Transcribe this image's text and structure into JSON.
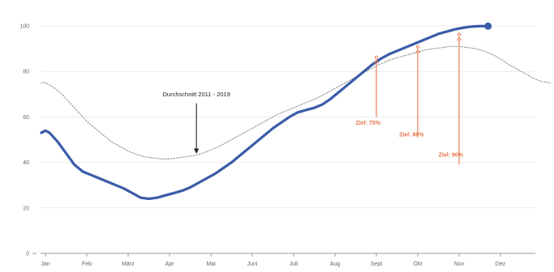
{
  "chart_data": {
    "type": "line",
    "title": "",
    "xlabel": "",
    "ylabel": "",
    "ylim": [
      0,
      100
    ],
    "yticks": [
      0,
      20,
      40,
      60,
      80,
      100
    ],
    "xlim": [
      0,
      12
    ],
    "xticks": [
      {
        "label": "Jan",
        "x": 0
      },
      {
        "label": "Feb",
        "x": 1
      },
      {
        "label": "März",
        "x": 2
      },
      {
        "label": "Apr",
        "x": 3
      },
      {
        "label": "Mai",
        "x": 4
      },
      {
        "label": "Juni",
        "x": 5
      },
      {
        "label": "Juli",
        "x": 6
      },
      {
        "label": "Aug",
        "x": 7
      },
      {
        "label": "Sept",
        "x": 8
      },
      {
        "label": "Okt",
        "x": 9
      },
      {
        "label": "Nov",
        "x": 10
      },
      {
        "label": "Dez",
        "x": 11
      }
    ],
    "grid": true,
    "series": [
      {
        "key": "current",
        "color": "#3a5ca8",
        "style": "solid",
        "end_marker": true,
        "points": [
          [
            -0.1,
            53
          ],
          [
            0.0,
            54
          ],
          [
            0.1,
            53
          ],
          [
            0.3,
            49
          ],
          [
            0.5,
            44
          ],
          [
            0.7,
            39
          ],
          [
            0.9,
            36
          ],
          [
            1.1,
            34.5
          ],
          [
            1.3,
            33
          ],
          [
            1.5,
            31.5
          ],
          [
            1.7,
            30
          ],
          [
            1.9,
            28.5
          ],
          [
            2.1,
            26.5
          ],
          [
            2.3,
            24.5
          ],
          [
            2.5,
            24
          ],
          [
            2.7,
            24.5
          ],
          [
            2.9,
            25.5
          ],
          [
            3.1,
            26.5
          ],
          [
            3.3,
            27.5
          ],
          [
            3.5,
            29
          ],
          [
            3.7,
            31
          ],
          [
            3.9,
            33
          ],
          [
            4.1,
            35
          ],
          [
            4.3,
            37.5
          ],
          [
            4.5,
            40
          ],
          [
            4.7,
            43
          ],
          [
            4.9,
            46
          ],
          [
            5.1,
            49
          ],
          [
            5.3,
            52
          ],
          [
            5.5,
            55
          ],
          [
            5.7,
            57.5
          ],
          [
            5.9,
            60
          ],
          [
            6.1,
            62
          ],
          [
            6.3,
            63
          ],
          [
            6.5,
            64
          ],
          [
            6.7,
            65.5
          ],
          [
            6.9,
            68
          ],
          [
            7.1,
            71
          ],
          [
            7.3,
            74
          ],
          [
            7.5,
            77
          ],
          [
            7.7,
            80
          ],
          [
            7.9,
            83
          ],
          [
            8.1,
            85.5
          ],
          [
            8.3,
            87.5
          ],
          [
            8.5,
            89
          ],
          [
            8.7,
            90.5
          ],
          [
            8.9,
            92
          ],
          [
            9.1,
            93.5
          ],
          [
            9.3,
            95
          ],
          [
            9.5,
            96.5
          ],
          [
            9.7,
            97.5
          ],
          [
            9.9,
            98.5
          ],
          [
            10.1,
            99.2
          ],
          [
            10.3,
            99.7
          ],
          [
            10.5,
            99.9
          ],
          [
            10.7,
            99.9
          ]
        ]
      },
      {
        "key": "average",
        "color": "#9a9a9a",
        "style": "dotted",
        "points": [
          [
            -0.1,
            75
          ],
          [
            0.0,
            75
          ],
          [
            0.2,
            73
          ],
          [
            0.4,
            70
          ],
          [
            0.6,
            66
          ],
          [
            0.8,
            62
          ],
          [
            1.0,
            58
          ],
          [
            1.2,
            55
          ],
          [
            1.4,
            52
          ],
          [
            1.6,
            49
          ],
          [
            1.8,
            47
          ],
          [
            2.0,
            45
          ],
          [
            2.2,
            43.5
          ],
          [
            2.4,
            42.5
          ],
          [
            2.6,
            42
          ],
          [
            2.8,
            41.5
          ],
          [
            3.0,
            41.5
          ],
          [
            3.2,
            42
          ],
          [
            3.4,
            42.5
          ],
          [
            3.6,
            43
          ],
          [
            3.8,
            44
          ],
          [
            4.0,
            45.5
          ],
          [
            4.2,
            47
          ],
          [
            4.4,
            49
          ],
          [
            4.6,
            51
          ],
          [
            4.8,
            53
          ],
          [
            5.0,
            55
          ],
          [
            5.2,
            57
          ],
          [
            5.4,
            59
          ],
          [
            5.6,
            61
          ],
          [
            5.8,
            62.5
          ],
          [
            6.0,
            64
          ],
          [
            6.2,
            65.5
          ],
          [
            6.4,
            67
          ],
          [
            6.6,
            68.5
          ],
          [
            6.8,
            70.5
          ],
          [
            7.0,
            72.5
          ],
          [
            7.2,
            74.5
          ],
          [
            7.4,
            76.5
          ],
          [
            7.6,
            78.5
          ],
          [
            7.8,
            80.5
          ],
          [
            8.0,
            82.5
          ],
          [
            8.2,
            84
          ],
          [
            8.4,
            85.5
          ],
          [
            8.6,
            86.5
          ],
          [
            8.8,
            87.5
          ],
          [
            9.0,
            88.5
          ],
          [
            9.2,
            89.5
          ],
          [
            9.4,
            90
          ],
          [
            9.6,
            90.5
          ],
          [
            9.8,
            91
          ],
          [
            10.0,
            91
          ],
          [
            10.2,
            90.5
          ],
          [
            10.4,
            90
          ],
          [
            10.6,
            89
          ],
          [
            10.8,
            87.5
          ],
          [
            11.0,
            85.5
          ],
          [
            11.2,
            83
          ],
          [
            11.4,
            81
          ],
          [
            11.6,
            79
          ],
          [
            11.8,
            77
          ],
          [
            12.0,
            75.5
          ],
          [
            12.2,
            75
          ]
        ]
      }
    ],
    "annotations": [
      {
        "key": "average-label",
        "text": "Durchschnitt 2011 - 2019",
        "text_x": 3.65,
        "text_y": 69,
        "arrow_from": [
          3.65,
          66
        ],
        "arrow_to": [
          3.65,
          45
        ],
        "color": "#222222"
      }
    ],
    "targets": [
      {
        "key": "target-75",
        "text": "Ziel: 75%",
        "x": 8.0,
        "y_top": 85,
        "y_base": 60,
        "label_x": 7.8,
        "label_y": 56.5
      },
      {
        "key": "target-80",
        "text": "Ziel: 80%",
        "x": 9.0,
        "y_top": 89.5,
        "y_base": 51,
        "label_x": 8.85,
        "label_y": 51.5
      },
      {
        "key": "target-90",
        "text": "Ziel: 90%",
        "x": 10.0,
        "y_top": 95,
        "y_base": 39,
        "label_x": 9.8,
        "label_y": 42.5
      }
    ],
    "target_color": "#e6744a"
  }
}
